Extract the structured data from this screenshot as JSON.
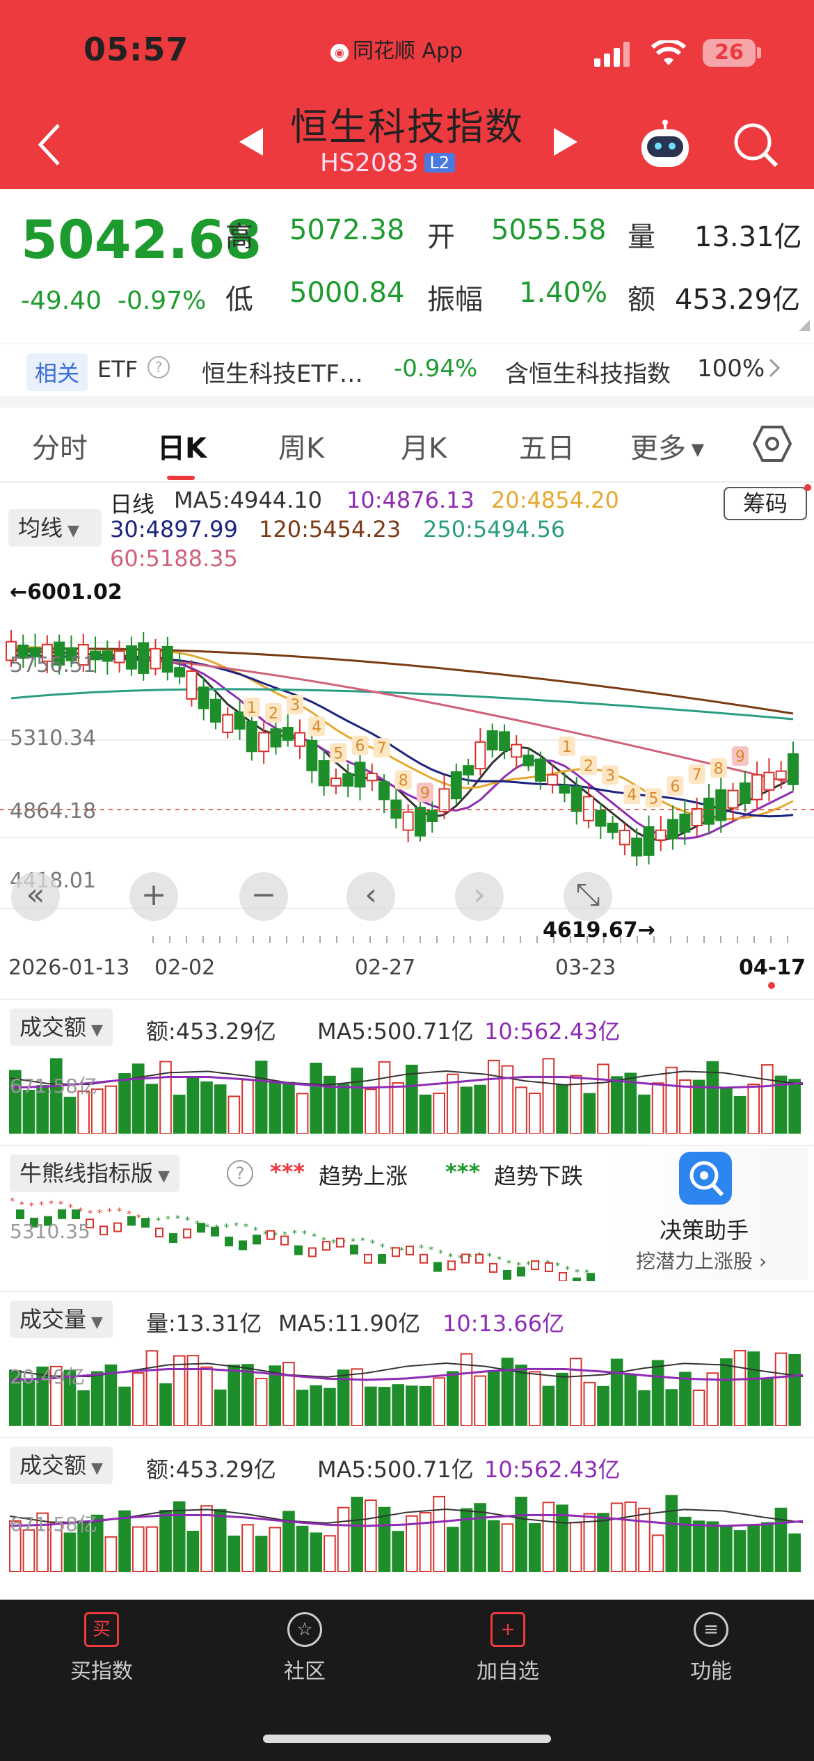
{
  "status": {
    "time": "05:57",
    "app_name": "同花顺 App",
    "battery": "26"
  },
  "header": {
    "title": "恒生科技指数",
    "code": "HS2083",
    "level": "L2"
  },
  "quote": {
    "price": "5042.68",
    "change": "-49.40",
    "change_pct": "-0.97%",
    "high_label": "高",
    "high": "5072.38",
    "open_label": "开",
    "open": "5055.58",
    "volume_label": "量",
    "volume": "13.31亿",
    "low_label": "低",
    "low": "5000.84",
    "amplitude_label": "振幅",
    "amplitude": "1.40%",
    "amount_label": "额",
    "amount": "453.29亿"
  },
  "related": {
    "tag": "相关",
    "etf_label": "ETF",
    "etf_name": "恒生科技ETF…",
    "etf_change": "-0.94%",
    "contain_label": "含恒生科技指数",
    "contain_pct": "100%"
  },
  "tabs": [
    "分时",
    "日K",
    "周K",
    "月K",
    "五日",
    "更多"
  ],
  "ma": {
    "button": "均线",
    "period": "日线",
    "ma5": "MA5:4944.10",
    "ma10": "10:4876.13",
    "ma20": "20:4854.20",
    "ma30": "30:4897.99",
    "ma120": "120:5454.23",
    "ma250": "250:5494.56",
    "ma60": "60:5188.35",
    "chouma": "筹码",
    "colors": {
      "ma5": "#333333",
      "ma10": "#8e2bb5",
      "ma20": "#e6a82e",
      "ma30": "#1a237e",
      "ma120": "#7a3b14",
      "ma250": "#2a9d80",
      "ma60": "#d0607a"
    }
  },
  "kchart": {
    "y_labels": [
      "6001.02",
      "5756.51",
      "5310.34",
      "4864.18",
      "4418.01"
    ],
    "max_label": "←6001.02",
    "min_label": "4619.67→",
    "x_labels": [
      "2026-01-13",
      "02-02",
      "02-27",
      "03-23",
      "04-17"
    ],
    "td_marks": [
      "1",
      "2",
      "3",
      "4",
      "5",
      "6",
      "7",
      "8",
      "9",
      "1",
      "2",
      "3",
      "4",
      "5",
      "6",
      "7",
      "8",
      "9"
    ]
  },
  "pane1": {
    "button": "成交额",
    "amount": "额:453.29亿",
    "ma5": "MA5:500.71亿",
    "ma10": "10:562.43亿",
    "ylabel": "671.58亿"
  },
  "pane2": {
    "button": "牛熊线指标版",
    "up_label": "趋势上涨",
    "down_label": "趋势下跌",
    "ylabel": "5310.35",
    "assist_title": "决策助手",
    "assist_sub": "挖潜力上涨股"
  },
  "pane3": {
    "button": "成交量",
    "volume": "量:13.31亿",
    "ma5": "MA5:11.90亿",
    "ma10": "10:13.66亿",
    "ylabel": "20.49亿"
  },
  "pane4": {
    "button": "成交额",
    "amount": "额:453.29亿",
    "ma5": "MA5:500.71亿",
    "ma10": "10:562.43亿",
    "ylabel": "671.58亿"
  },
  "nav": [
    {
      "label": "买指数",
      "icon": "买"
    },
    {
      "label": "社区",
      "icon": "☆"
    },
    {
      "label": "加自选",
      "icon": "+"
    },
    {
      "label": "功能",
      "icon": "≡"
    }
  ]
}
